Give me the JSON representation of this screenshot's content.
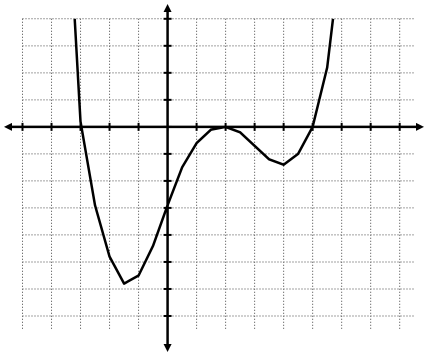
{
  "chart_data": {
    "type": "line",
    "x": [
      -3.2,
      -3,
      -2.5,
      -2,
      -1.5,
      -1,
      -0.5,
      0,
      0.5,
      1,
      1.5,
      2,
      2.5,
      3,
      3.5,
      4,
      4.5,
      5,
      5.5,
      5.7
    ],
    "values": [
      4,
      0.2,
      -2.9,
      -4.8,
      -5.8,
      -5.5,
      -4.4,
      -2.9,
      -1.5,
      -0.6,
      -0.1,
      0,
      -0.2,
      -0.7,
      -1.2,
      -1.4,
      -1.0,
      0,
      2.2,
      4
    ],
    "color": "#000000",
    "xlim": [
      -5.5,
      8.7
    ],
    "ylim": [
      -8,
      4.4
    ],
    "xticks": [
      -5,
      -4,
      -3,
      -2,
      -1,
      0,
      1,
      2,
      3,
      4,
      5,
      6,
      7,
      8
    ],
    "yticks": [
      -7,
      -6,
      -5,
      -4,
      -3,
      -2,
      -1,
      0,
      1,
      2,
      3,
      4
    ],
    "grid": true
  }
}
